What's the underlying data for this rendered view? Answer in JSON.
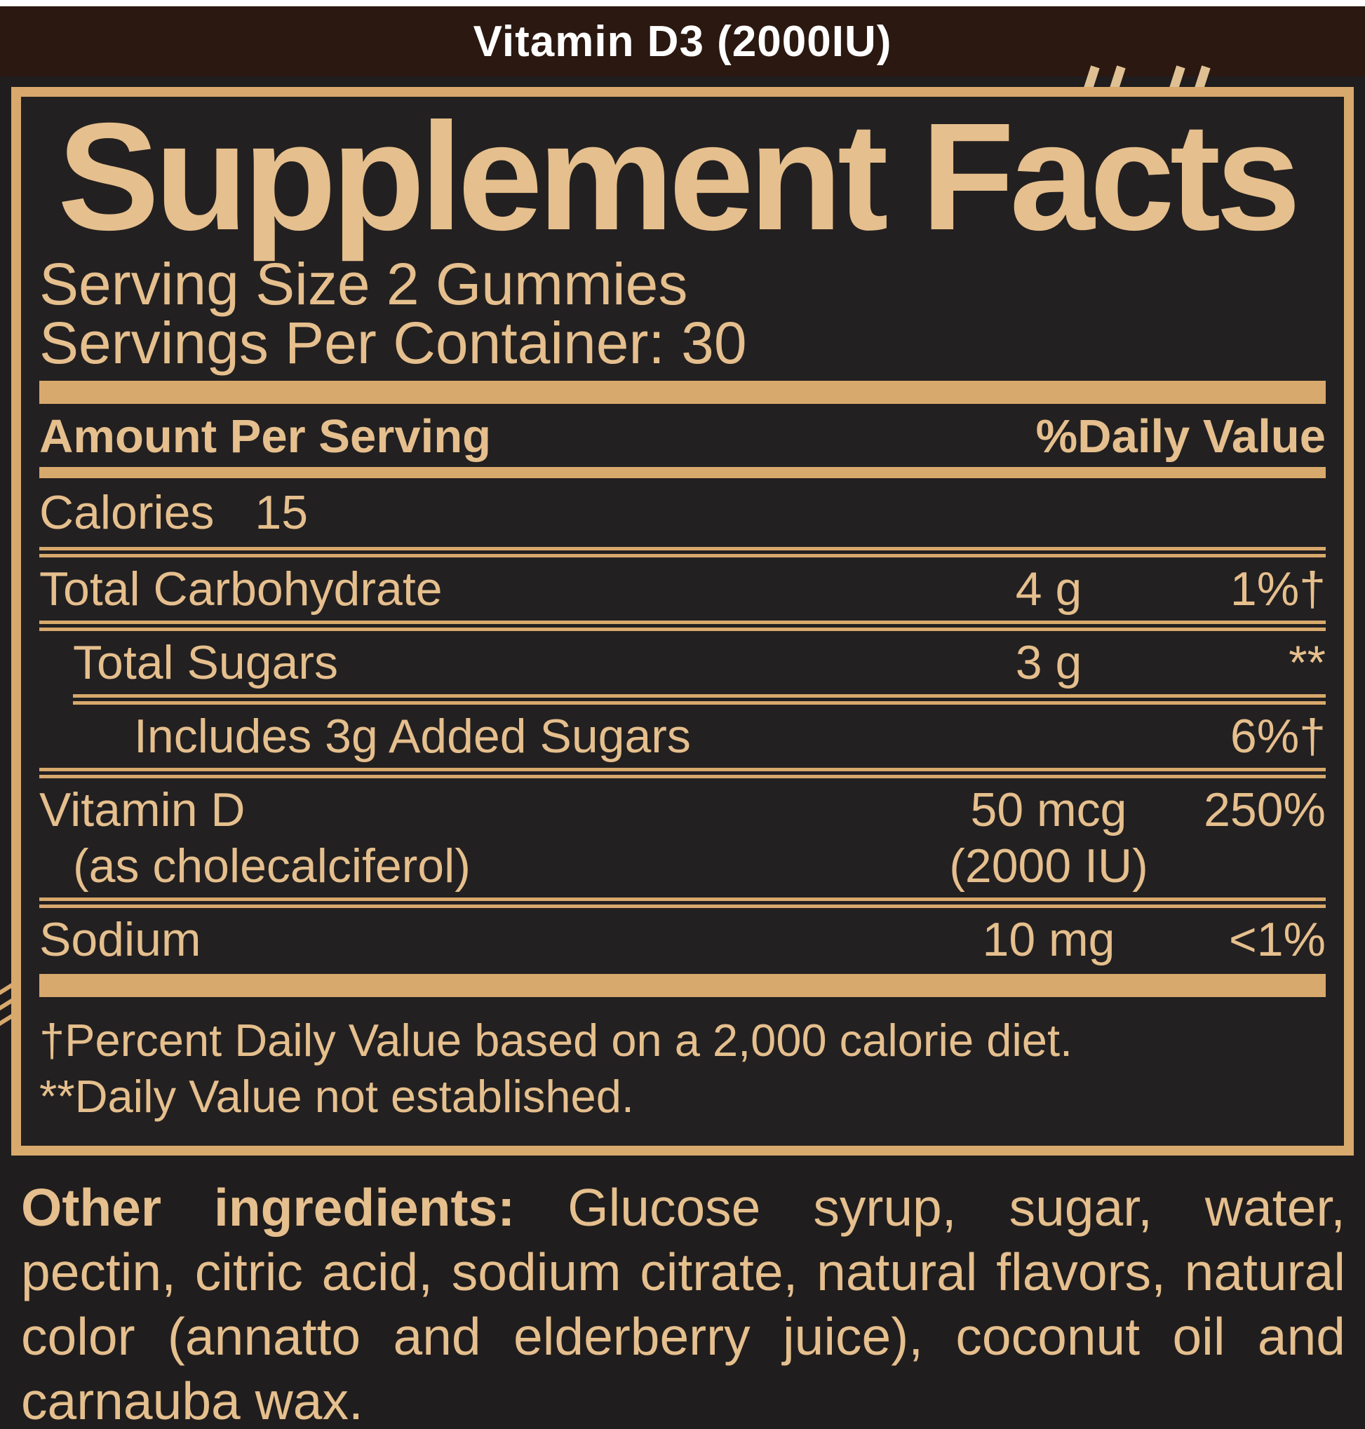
{
  "header": {
    "title": "Vitamin D3 (2000IU)"
  },
  "panel": {
    "title": "Supplement Facts",
    "serving_size": "Serving Size 2 Gummies",
    "servings_per_container": "Servings Per Container: 30",
    "columns": {
      "amount": "Amount Per Serving",
      "dv": "%Daily Value"
    },
    "calories": {
      "label": "Calories",
      "value": "15"
    },
    "rows": [
      {
        "name": "Total Carbohydrate",
        "amount": "4 g",
        "dv": "1%†"
      },
      {
        "name": "Total Sugars",
        "amount": "3 g",
        "dv": "**"
      },
      {
        "name": "Includes 3g Added Sugars",
        "amount": "",
        "dv": "6%†"
      },
      {
        "name": "Vitamin D",
        "name2": "(as cholecalciferol)",
        "amount": "50 mcg",
        "amount2": "(2000 IU)",
        "dv": "250%"
      },
      {
        "name": "Sodium",
        "amount": "10 mg",
        "dv": "<1%"
      }
    ],
    "footnotes": [
      "†Percent Daily Value based on a 2,000 calorie diet.",
      "**Daily Value not established."
    ]
  },
  "ingredients": {
    "label": "Other ingredients:",
    "line1_rest": " Glucose syrup, sugar, water,",
    "line2": "pectin, citric acid, sodium citrate, natural flavors, natural",
    "line3": "color (annatto and elderberry juice), coconut oil and",
    "line4": "carnauba wax."
  },
  "colors": {
    "tan_text": "#e5bf8d",
    "tan_rule": "#d8a96c",
    "panel_bg": "#232021",
    "page_bg": "#201d1e",
    "topbar_bg": "#2b1811",
    "topbar_text": "#ffffff"
  }
}
